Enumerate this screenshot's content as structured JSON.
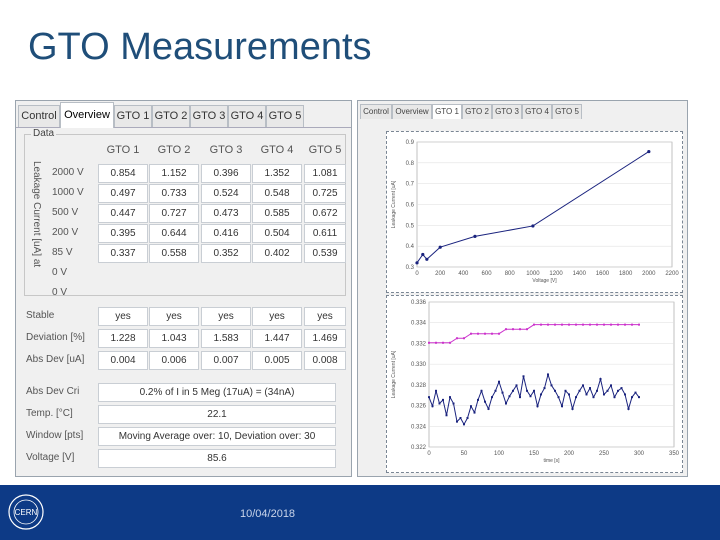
{
  "slide": {
    "title": "GTO Measurements",
    "date": "10/04/2018",
    "logo_text": "CERN"
  },
  "left": {
    "tabs": [
      "Control",
      "Overview",
      "GTO 1",
      "GTO 2",
      "GTO 3",
      "GTO 4",
      "GTO 5"
    ],
    "active_tab": "Overview",
    "group_label": "Data",
    "vertical_label": "Leakage Current [uA] at",
    "columns": [
      "GTO 1",
      "GTO 2",
      "GTO 3",
      "GTO 4",
      "GTO 5"
    ],
    "rows": [
      {
        "label": "2000 V",
        "values": [
          "0.854",
          "1.152",
          "0.396",
          "1.352",
          "1.081"
        ]
      },
      {
        "label": "1000 V",
        "values": [
          "0.497",
          "0.733",
          "0.524",
          "0.548",
          "0.725"
        ]
      },
      {
        "label": "500 V",
        "values": [
          "0.447",
          "0.727",
          "0.473",
          "0.585",
          "0.672"
        ]
      },
      {
        "label": "200 V",
        "values": [
          "0.395",
          "0.644",
          "0.416",
          "0.504",
          "0.611"
        ]
      },
      {
        "label": "85 V",
        "values": [
          "0.337",
          "0.558",
          "0.352",
          "0.402",
          "0.539"
        ]
      },
      {
        "label": "0 V",
        "values": []
      },
      {
        "label": "0 V",
        "values": []
      }
    ],
    "stable": {
      "label": "Stable",
      "values": [
        "yes",
        "yes",
        "yes",
        "yes",
        "yes"
      ]
    },
    "deviation": {
      "label": "Deviation [%]",
      "values": [
        "1.228",
        "1.043",
        "1.583",
        "1.447",
        "1.469"
      ]
    },
    "absdev": {
      "label": "Abs Dev [uA]",
      "values": [
        "0.004",
        "0.006",
        "0.007",
        "0.005",
        "0.008"
      ]
    },
    "abs_dev_cri": {
      "label": "Abs Dev Cri",
      "value": "0.2% of I in 5 Meg (17uA) = (34nA)"
    },
    "temp": {
      "label": "Temp. [°C]",
      "value": "22.1"
    },
    "window": {
      "label": "Window [pts]",
      "value": "Moving Average over: 10, Deviation over: 30"
    },
    "voltage": {
      "label": "Voltage [V]",
      "value": "85.6"
    }
  },
  "right": {
    "tabs": [
      "Control",
      "Overview",
      "GTO 1",
      "GTO 2",
      "GTO 3",
      "GTO 4",
      "GTO 5"
    ],
    "active_tab": "GTO 1"
  },
  "chart_data": [
    {
      "type": "line",
      "title": "",
      "xlabel": "Voltage [V]",
      "ylabel": "Leakage Current [uA]",
      "x": [
        0,
        50,
        85,
        200,
        500,
        1000,
        2000
      ],
      "series": [
        {
          "values": [
            0.32,
            0.36,
            0.337,
            0.395,
            0.447,
            0.497,
            0.854
          ]
        }
      ],
      "xlim": [
        0,
        2200
      ],
      "ylim": [
        0.3,
        0.9
      ],
      "xticks": [
        "0",
        "200",
        "400",
        "600",
        "800",
        "1000",
        "1200",
        "1400",
        "1600",
        "1800",
        "2000",
        "2200"
      ],
      "yticks": [
        "0.3",
        "0.4",
        "0.5",
        "0.6",
        "0.7",
        "0.8",
        "0.9"
      ],
      "color": "#1a237e"
    },
    {
      "type": "line",
      "title": "",
      "xlabel": "time [s]",
      "ylabel": "Leakage Current [uA]",
      "xlim": [
        0,
        350
      ],
      "ylim": [
        0.32,
        0.336
      ],
      "xticks": [
        "0",
        "50",
        "100",
        "150",
        "200",
        "250",
        "300",
        "350"
      ],
      "yticks": [
        "0.322",
        "0.324",
        "0.326",
        "0.328",
        "0.330",
        "0.332",
        "0.334",
        "0.336"
      ],
      "series": [
        {
          "color": "#cc33cc",
          "x": [
            0,
            10,
            20,
            30,
            40,
            50,
            60,
            70,
            80,
            90,
            100,
            110,
            120,
            130,
            140,
            150,
            160,
            170,
            180,
            190,
            200,
            210,
            220,
            230,
            240,
            250,
            260,
            270,
            280,
            290,
            300
          ],
          "values": [
            0.3315,
            0.3315,
            0.3315,
            0.3315,
            0.332,
            0.332,
            0.3325,
            0.3325,
            0.3325,
            0.3325,
            0.3325,
            0.333,
            0.333,
            0.333,
            0.333,
            0.3335,
            0.3335,
            0.3335,
            0.3335,
            0.3335,
            0.3335,
            0.3335,
            0.3335,
            0.3335,
            0.3335,
            0.3335,
            0.3335,
            0.3335,
            0.3335,
            0.3335,
            0.3335
          ]
        },
        {
          "color": "#1a237e",
          "x": [
            0,
            5,
            10,
            15,
            20,
            25,
            30,
            35,
            40,
            45,
            50,
            55,
            60,
            65,
            70,
            75,
            80,
            85,
            90,
            95,
            100,
            105,
            110,
            115,
            120,
            125,
            130,
            135,
            140,
            145,
            150,
            155,
            160,
            165,
            170,
            175,
            180,
            185,
            190,
            195,
            200,
            205,
            210,
            215,
            220,
            225,
            230,
            235,
            240,
            245,
            250,
            255,
            260,
            265,
            270,
            275,
            280,
            285,
            290,
            295,
            300
          ],
          "values": [
            0.3255,
            0.3245,
            0.3262,
            0.3248,
            0.3252,
            0.3235,
            0.3255,
            0.3248,
            0.3228,
            0.3232,
            0.3225,
            0.3232,
            0.3245,
            0.3238,
            0.3252,
            0.3262,
            0.325,
            0.3242,
            0.3255,
            0.3262,
            0.3272,
            0.326,
            0.3248,
            0.3256,
            0.3262,
            0.3268,
            0.3255,
            0.3278,
            0.3262,
            0.3256,
            0.3262,
            0.3245,
            0.3258,
            0.3265,
            0.328,
            0.3268,
            0.3262,
            0.3255,
            0.3245,
            0.3262,
            0.3258,
            0.3242,
            0.3255,
            0.3262,
            0.3268,
            0.3258,
            0.3265,
            0.3255,
            0.3262,
            0.3275,
            0.3258,
            0.3262,
            0.3268,
            0.3255,
            0.3262,
            0.3265,
            0.3258,
            0.3242,
            0.3255,
            0.326,
            0.3255
          ]
        }
      ]
    }
  ]
}
